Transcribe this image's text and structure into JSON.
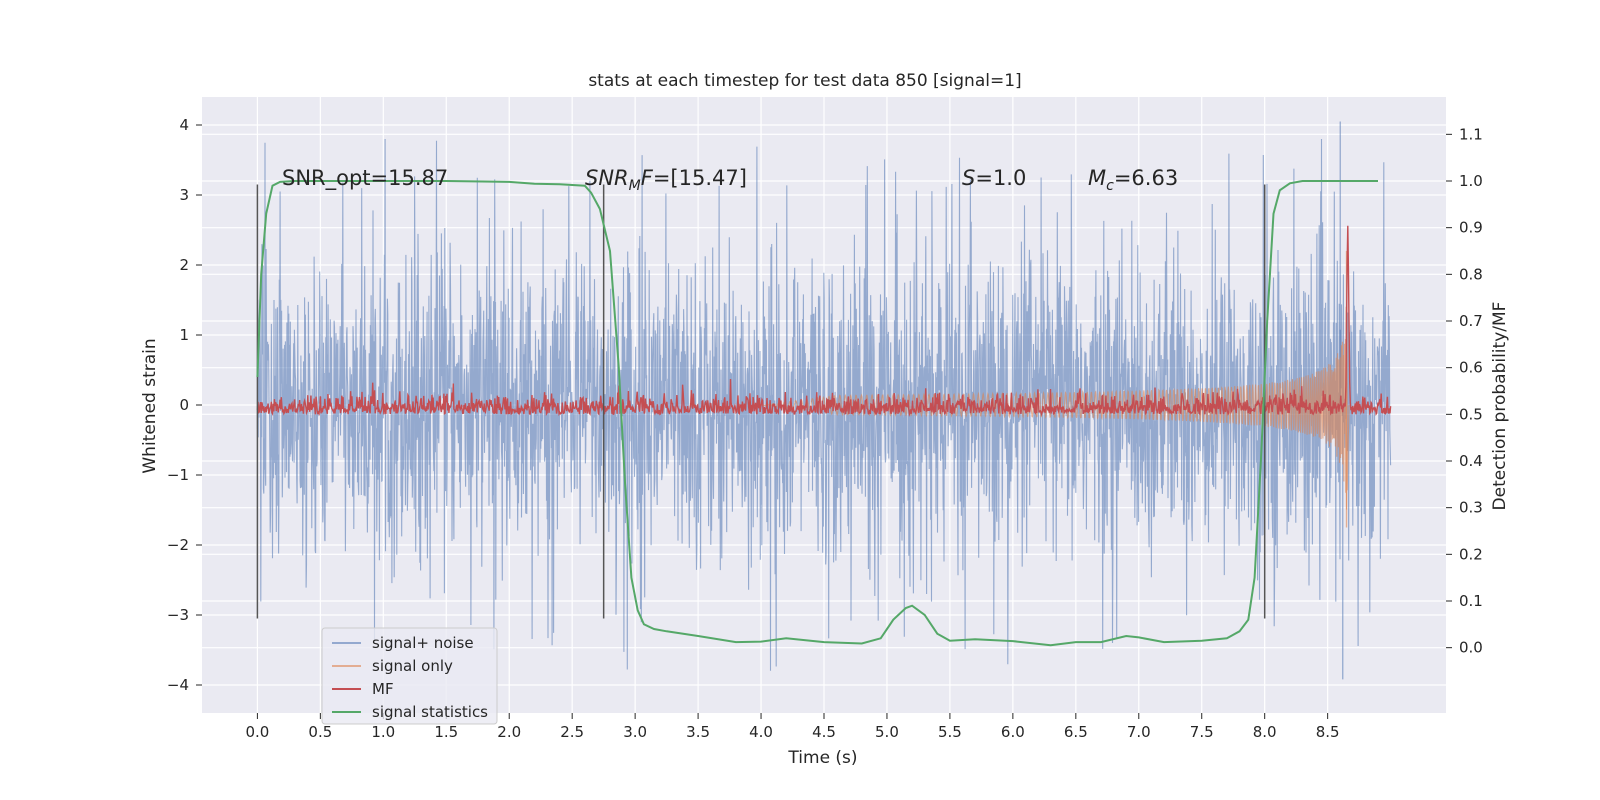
{
  "chart_data": {
    "type": "line",
    "title": "stats at each timestep for test data 850 [signal=1]",
    "xlabel": "Time (s)",
    "ylabel": "Whitened strain",
    "y2label": "Detection probability/MF",
    "xlim": [
      -0.44,
      9.44
    ],
    "ylim": [
      -4.4,
      4.4
    ],
    "y2lim": [
      -0.14,
      1.18
    ],
    "x_ticks": [
      0.0,
      0.5,
      1.0,
      1.5,
      2.0,
      2.5,
      3.0,
      3.5,
      4.0,
      4.5,
      5.0,
      5.5,
      6.0,
      6.5,
      7.0,
      7.5,
      8.0,
      8.5
    ],
    "x_tick_labels": [
      "0.0",
      "0.5",
      "1.0",
      "1.5",
      "2.0",
      "2.5",
      "3.0",
      "3.5",
      "4.0",
      "4.5",
      "5.0",
      "5.5",
      "6.0",
      "6.5",
      "7.0",
      "7.5",
      "8.0",
      "8.5"
    ],
    "y_ticks": [
      4,
      3,
      2,
      1,
      0,
      -1,
      -2,
      -3,
      -4
    ],
    "y_tick_labels": [
      "4",
      "3",
      "2",
      "1",
      "0",
      "−1",
      "−2",
      "−3",
      "−4"
    ],
    "y2_ticks": [
      1.1,
      1.0,
      0.9,
      0.8,
      0.7,
      0.6,
      0.5,
      0.4,
      0.3,
      0.2,
      0.1,
      0.0
    ],
    "y2_tick_labels": [
      "1.1",
      "1.0",
      "0.9",
      "0.8",
      "0.7",
      "0.6",
      "0.5",
      "0.4",
      "0.3",
      "0.2",
      "0.1",
      "0.0"
    ],
    "legend_position": "lower-left",
    "series": [
      {
        "name": "signal+ noise",
        "axis": "left",
        "color": "#4c72b0",
        "kind": "noise",
        "time_range": [
          0.0,
          9.0
        ],
        "typical_amplitude": 2.5,
        "peak_max": 4.05,
        "peak_min": -3.92
      },
      {
        "name": "signal only",
        "axis": "left",
        "color": "#dd8452",
        "kind": "chirp",
        "time_range": [
          4.0,
          8.67
        ],
        "peak_max": 2.2,
        "peak_min": -1.75,
        "merger_time": 8.65
      },
      {
        "name": "MF",
        "axis": "right",
        "color": "#c44e52",
        "kind": "mf",
        "time_range": [
          0.0,
          9.0
        ],
        "baseline": 0.5,
        "peak_time": 8.66,
        "peak_value": 0.87
      },
      {
        "name": "signal statistics",
        "axis": "right",
        "color": "#55a868",
        "kind": "line",
        "x": [
          0.0,
          0.03,
          0.07,
          0.12,
          0.18,
          0.3,
          0.5,
          1.0,
          1.5,
          2.0,
          2.2,
          2.4,
          2.6,
          2.65,
          2.72,
          2.8,
          2.87,
          2.92,
          2.97,
          3.02,
          3.07,
          3.15,
          3.25,
          3.5,
          3.8,
          4.0,
          4.2,
          4.5,
          4.8,
          4.95,
          5.05,
          5.15,
          5.2,
          5.3,
          5.4,
          5.5,
          5.7,
          6.0,
          6.3,
          6.5,
          6.7,
          6.9,
          7.0,
          7.2,
          7.5,
          7.7,
          7.8,
          7.87,
          7.92,
          7.97,
          8.02,
          8.07,
          8.12,
          8.2,
          8.3,
          8.5,
          8.7,
          8.9
        ],
        "y": [
          0.58,
          0.8,
          0.93,
          0.99,
          0.998,
          1.0,
          1.0,
          1.0,
          1.0,
          0.998,
          0.994,
          0.993,
          0.99,
          0.975,
          0.94,
          0.85,
          0.6,
          0.35,
          0.15,
          0.08,
          0.05,
          0.04,
          0.035,
          0.025,
          0.012,
          0.013,
          0.02,
          0.012,
          0.009,
          0.02,
          0.06,
          0.085,
          0.09,
          0.07,
          0.03,
          0.015,
          0.018,
          0.014,
          0.005,
          0.012,
          0.012,
          0.025,
          0.022,
          0.012,
          0.015,
          0.02,
          0.035,
          0.06,
          0.15,
          0.4,
          0.7,
          0.93,
          0.98,
          0.995,
          1.0,
          1.0,
          1.0,
          1.0
        ]
      }
    ],
    "vertical_lines": [
      0.0,
      2.75,
      8.0
    ],
    "annotations": [
      {
        "x": 0.2,
        "y2": 1.02,
        "text": "SNR_opt=15.87"
      },
      {
        "x": 2.6,
        "y2": 1.02,
        "text": "SNR_MF=[15.47]"
      },
      {
        "x": 5.6,
        "y2": 1.02,
        "text": "S=1.0"
      },
      {
        "x": 6.6,
        "y2": 1.02,
        "text": "M_c=6.63"
      }
    ]
  },
  "colors": {
    "plot_background": "#eaeaf2",
    "grid": "#ffffff",
    "vline": "#555555",
    "text": "#262626"
  },
  "annot_text": {
    "snr_opt": "SNR_opt=15.87",
    "snr_mf_sym": "SNR",
    "snr_mf_sub": "M",
    "snr_mf_tail": "F",
    "snr_mf_val": "=[15.47]",
    "s_sym": "S",
    "s_val": "=1.0",
    "mc_sym": "M",
    "mc_sub": "c",
    "mc_val": "=6.63"
  }
}
